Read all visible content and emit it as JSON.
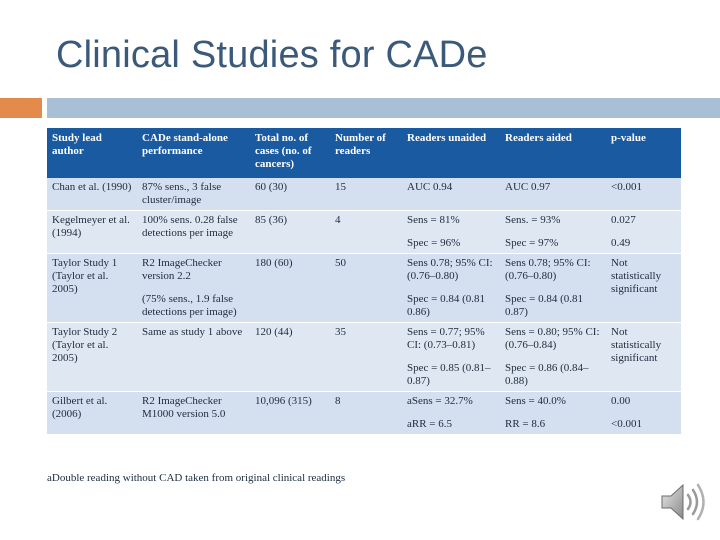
{
  "title": "Clinical Studies for CADe",
  "colors": {
    "accent_orange": "#e28b4b",
    "accent_blue": "#a9bfd6",
    "header_blue": "#1a5aa0",
    "title": "#3b5a7a"
  },
  "table": {
    "headers": [
      "Study lead author",
      "CADe stand-alone performance",
      "Total no. of cases (no. of cancers)",
      "Number of readers",
      "Readers unaided",
      "Readers aided",
      "p-value"
    ],
    "rows": [
      {
        "author": "Chan et al. (1990)",
        "performance": "87% sens., 3 false cluster/image",
        "cases": "60 (30)",
        "readers": "15",
        "unaided": [
          "AUC 0.94"
        ],
        "aided": [
          "AUC 0.97"
        ],
        "pvalue": [
          "<0.001"
        ]
      },
      {
        "author": "Kegelmeyer et al. (1994)",
        "performance": "100% sens. 0.28 false detections per image",
        "cases": "85 (36)",
        "readers": "4",
        "unaided": [
          "Sens = 81%",
          "Spec = 96%"
        ],
        "aided": [
          "Sens. = 93%",
          "Spec = 97%"
        ],
        "pvalue": [
          "0.027",
          "0.49"
        ]
      },
      {
        "author": "Taylor Study 1 (Taylor et al. 2005)",
        "performance": "R2 ImageChecker version 2.2",
        "performance_note": "(75% sens., 1.9 false detections per image)",
        "cases": "180 (60)",
        "readers": "50",
        "unaided": [
          "Sens 0.78; 95% CI: (0.76–0.80)",
          "Spec = 0.84 (0.81 0.86)"
        ],
        "aided": [
          "Sens 0.78; 95% CI: (0.76–0.80)",
          "Spec = 0.84 (0.81 0.87)"
        ],
        "pvalue": [
          "Not statistically significant"
        ]
      },
      {
        "author": "Taylor Study 2 (Taylor et al. 2005)",
        "performance": "Same as study 1 above",
        "cases": "120 (44)",
        "readers": "35",
        "unaided": [
          "Sens = 0.77; 95% CI: (0.73–0.81)",
          "Spec = 0.85 (0.81–0.87)"
        ],
        "aided": [
          "Sens = 0.80; 95% CI: (0.76–0.84)",
          "Spec = 0.86 (0.84–0.88)"
        ],
        "pvalue": [
          "Not statistically significant"
        ]
      },
      {
        "author": "Gilbert et al. (2006)",
        "performance": "R2 ImageChecker M1000 version 5.0",
        "cases": "10,096 (315)",
        "readers": "8",
        "unaided": [
          "aSens = 32.7%",
          "aRR = 6.5"
        ],
        "aided": [
          "Sens = 40.0%",
          "RR = 8.6"
        ],
        "pvalue": [
          "0.00",
          "<0.001"
        ]
      }
    ]
  },
  "footnote": "aDouble reading without CAD taken from original clinical readings",
  "speaker_icon": "speaker-icon"
}
